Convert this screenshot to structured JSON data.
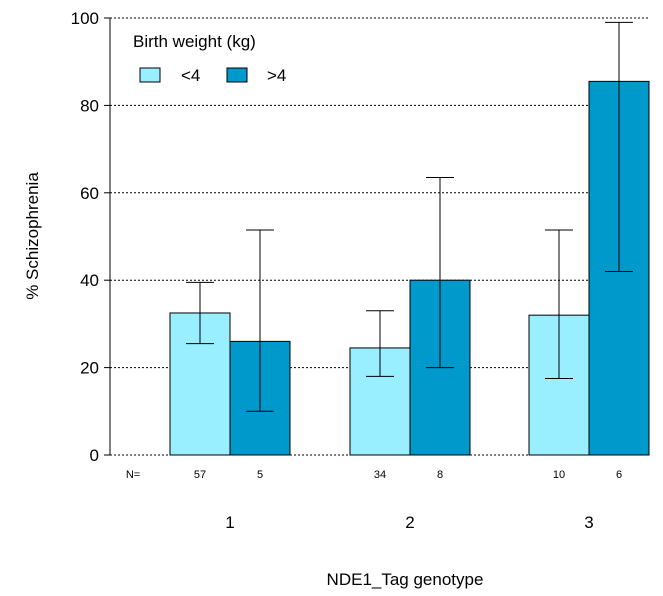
{
  "chart_data": {
    "type": "bar",
    "xlabel": "NDE1_Tag genotype",
    "ylabel": "% Schizophrenia",
    "ylim": [
      0,
      100
    ],
    "yticks": [
      0,
      20,
      40,
      60,
      80,
      100
    ],
    "grid": "horizontal-dotted",
    "categories": [
      "1",
      "2",
      "3"
    ],
    "legend": {
      "title": "Birth weight (kg)",
      "position": "top-left"
    },
    "series": [
      {
        "name": "<4",
        "color": "#99EEFF",
        "values": [
          32.5,
          24.5,
          32
        ],
        "error_low": [
          25.5,
          18,
          17.5
        ],
        "error_high": [
          39.5,
          33,
          51.5
        ],
        "n": [
          "57",
          "34",
          "10"
        ]
      },
      {
        "name": ">4",
        "color": "#0099CC",
        "values": [
          26,
          40,
          85.5
        ],
        "error_low": [
          10,
          20,
          42
        ],
        "error_high": [
          51.5,
          63.5,
          99
        ],
        "n": [
          "5",
          "8",
          "6"
        ]
      }
    ],
    "n_prefix": "N="
  }
}
